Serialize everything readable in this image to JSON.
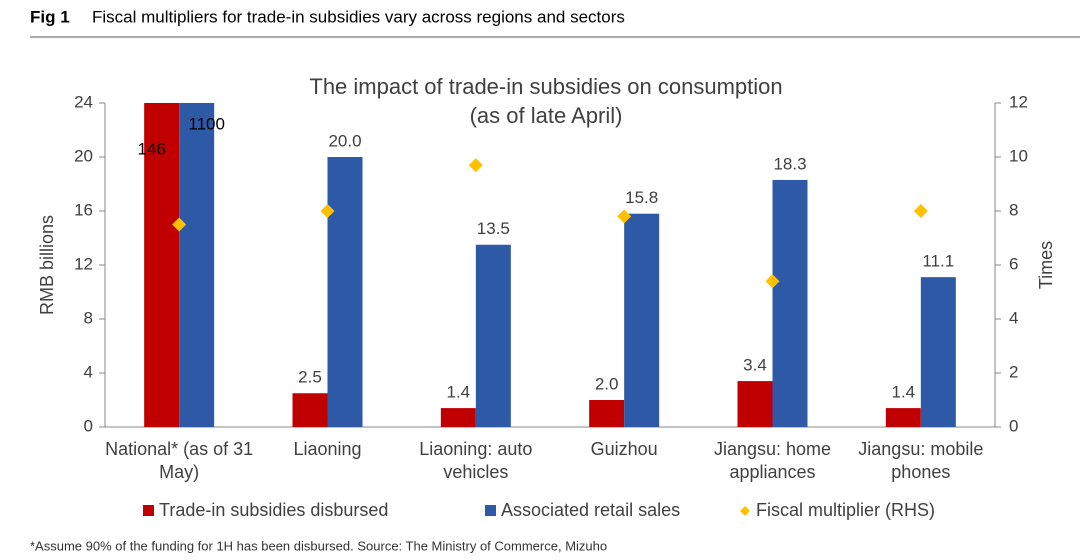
{
  "header": {
    "fig": "Fig 1",
    "caption": "Fiscal multipliers for trade-in subsidies vary across regions and sectors"
  },
  "chart_data": {
    "type": "bar",
    "title": "The impact of trade-in subsidies on consumption",
    "subtitle": "(as of late April)",
    "y_label": "RMB billions",
    "y2_label": "Times",
    "categories": [
      "National* (as of 31 May)",
      "Liaoning",
      "Liaoning: auto vehicles",
      "Guizhou",
      "Jiangsu: home appliances",
      "Jiangsu: mobile phones"
    ],
    "series": [
      {
        "name": "Trade-in subsidies disbursed",
        "color": "#c00000",
        "values": [
          146,
          2.5,
          1.4,
          2.0,
          3.4,
          1.4
        ],
        "value_labels": [
          "146",
          "2.5",
          "1.4",
          "2.0",
          "3.4",
          "1.4"
        ]
      },
      {
        "name": "Associated retail sales",
        "color": "#2e59a6",
        "values": [
          1100,
          20.0,
          13.5,
          15.8,
          18.3,
          11.1
        ],
        "value_labels": [
          "1100",
          "20.0",
          "13.5",
          "15.8",
          "18.3",
          "11.1"
        ]
      },
      {
        "name": "Fiscal multiplier (RHS)",
        "color": "#ffc000",
        "axis": "y2",
        "type": "scatter",
        "values": [
          7.5,
          8.0,
          9.7,
          7.8,
          5.4,
          8.0
        ]
      }
    ],
    "ylim": [
      0,
      24
    ],
    "yticks": [
      0,
      4,
      8,
      12,
      16,
      20,
      24
    ],
    "y2lim": [
      0,
      12
    ],
    "y2ticks": [
      0,
      2,
      4,
      6,
      8,
      10,
      12
    ],
    "grid": false,
    "legend": "bottom"
  },
  "footnote": "*Assume 90% of the funding for 1H has been disbursed. Source: The Ministry of Commerce, Mizuho"
}
